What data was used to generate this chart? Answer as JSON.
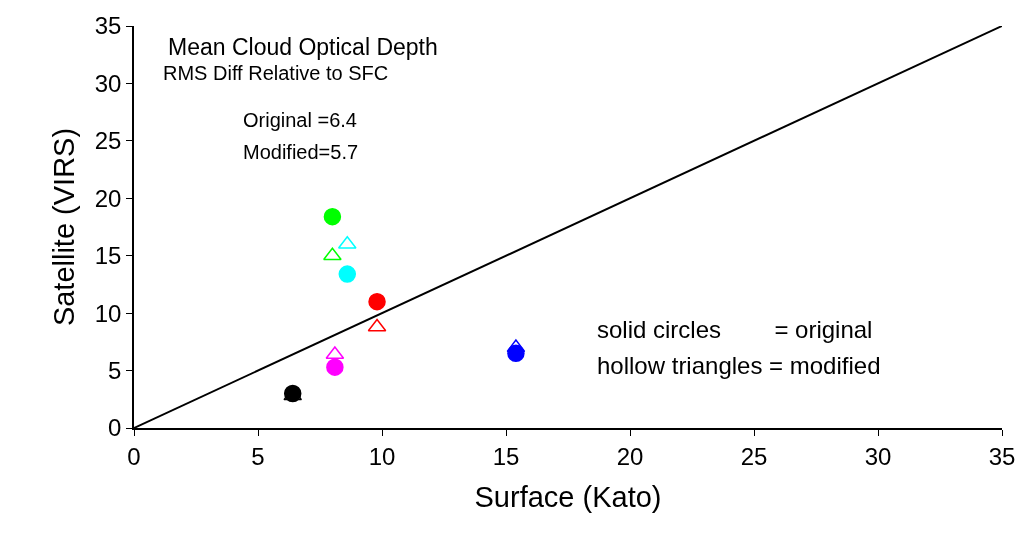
{
  "chart_data": {
    "type": "scatter",
    "xlabel": "Surface (Kato)",
    "ylabel": "Satellite (VIRS)",
    "xlim": [
      0,
      35
    ],
    "ylim": [
      0,
      35
    ],
    "xticks": [
      0,
      5,
      10,
      15,
      20,
      25,
      30,
      35
    ],
    "yticks": [
      0,
      5,
      10,
      15,
      20,
      25,
      30,
      35
    ],
    "grid": false,
    "series": [
      {
        "type": "line",
        "color": "#000000",
        "x": [
          0,
          35
        ],
        "values": [
          0,
          35
        ],
        "marker": "none",
        "line_style": "solid"
      },
      {
        "marker": "circle",
        "x": [
          8.0,
          8.6,
          9.8,
          8.1,
          6.4,
          15.4
        ],
        "values": [
          18.4,
          13.4,
          11.0,
          5.3,
          3.0,
          6.5
        ],
        "colors": [
          "#00ff00",
          "#00ffff",
          "#ff0000",
          "#ff00ff",
          "#000000",
          "#0000ff"
        ]
      },
      {
        "marker": "triangle",
        "x": [
          8.0,
          8.6,
          9.8,
          8.1,
          6.4,
          15.4
        ],
        "values": [
          15.0,
          16.0,
          8.8,
          6.4,
          2.8,
          7.0
        ],
        "colors": [
          "#00ff00",
          "#00ffff",
          "#ff0000",
          "#ff00ff",
          "#000000",
          "#0000ff"
        ]
      }
    ],
    "annotations": [
      "Mean Cloud Optical Depth",
      "RMS Diff Relative to SFC",
      "Original =6.4",
      "Modified=5.7",
      "solid circles        = original",
      "hollow triangles = modified"
    ]
  }
}
